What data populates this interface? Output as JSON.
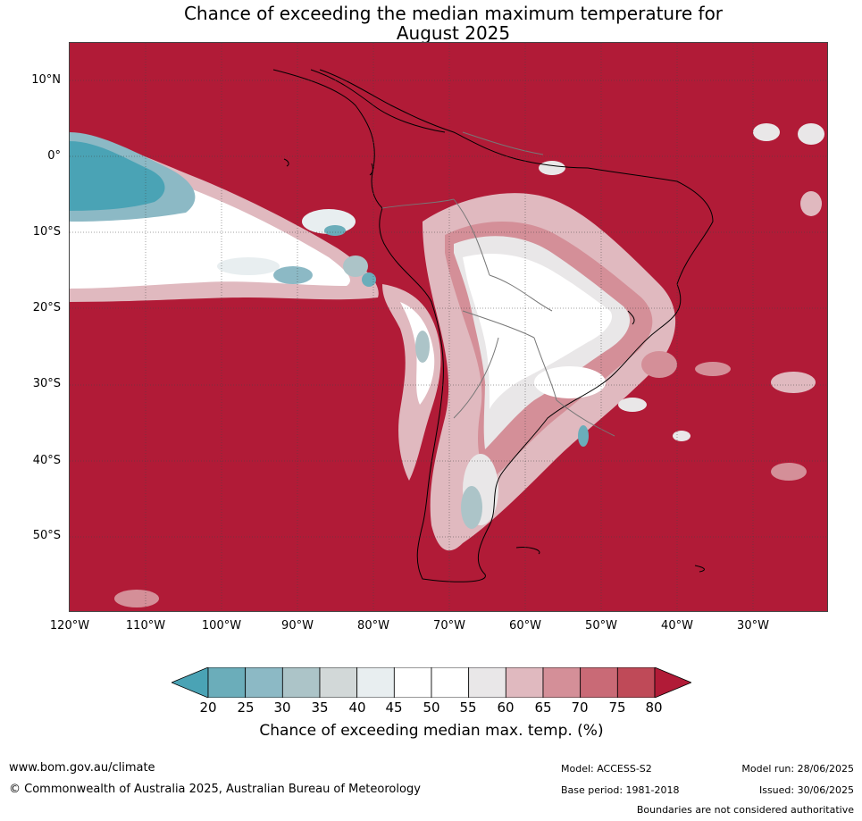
{
  "title_line1": "Chance of exceeding the median maximum temperature for",
  "title_line2": "August 2025",
  "lat_labels": [
    "10°N",
    "0°",
    "10°S",
    "20°S",
    "30°S",
    "40°S",
    "50°S"
  ],
  "lon_labels": [
    "120°W",
    "110°W",
    "100°W",
    "90°W",
    "80°W",
    "70°W",
    "60°W",
    "50°W",
    "40°W",
    "30°W"
  ],
  "colorbar": {
    "ticks": [
      "20",
      "25",
      "30",
      "35",
      "40",
      "45",
      "50",
      "55",
      "60",
      "65",
      "70",
      "75",
      "80"
    ],
    "colors": [
      "#4aa3b5",
      "#6badba",
      "#8cb9c5",
      "#acc4c8",
      "#d2d8d8",
      "#e8eef0",
      "#ffffff",
      "#ffffff",
      "#e9e7e8",
      "#e0b9bf",
      "#d48f98",
      "#c96a76",
      "#bf4a58",
      "#b11b37"
    ],
    "label": "Chance of exceeding median max. temp. (%)"
  },
  "colors": {
    "dominant": "#b11b37",
    "coast": "#000000",
    "borders": "#777777"
  },
  "footer": {
    "website": "www.bom.gov.au/climate",
    "copyright": "© Commonwealth of Australia 2025, Australian Bureau of Meteorology",
    "model": "Model: ACCESS-S2",
    "base_period": "Base period: 1981-2018",
    "model_run": "Model run: 28/06/2025",
    "issued": "Issued: 30/06/2025",
    "disclaimer": "Boundaries are not considered authoritative"
  }
}
